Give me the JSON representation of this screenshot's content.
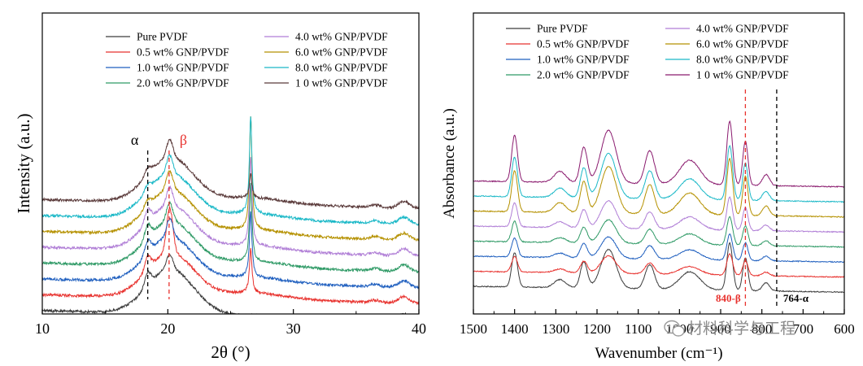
{
  "chart_data": [
    {
      "type": "line",
      "title": "",
      "xlabel": "2θ (°)",
      "ylabel": "Intensity (a.u.)",
      "xlim": [
        10,
        40
      ],
      "xticks": [
        "10",
        "20",
        "30",
        "40"
      ],
      "legend": "top",
      "grid": false,
      "annotations": [
        {
          "label": "α",
          "x": 18.4,
          "color": "#000000"
        },
        {
          "label": "β",
          "x": 20.1,
          "color": "#e8322e"
        }
      ],
      "series": [
        {
          "name": "Pure PVDF",
          "color": "#3c3c3c"
        },
        {
          "name": "0.5 wt% GNP/PVDF",
          "color": "#e8322e"
        },
        {
          "name": "1.0 wt% GNP/PVDF",
          "color": "#1f5fbf"
        },
        {
          "name": "2.0 wt% GNP/PVDF",
          "color": "#2f9a66"
        },
        {
          "name": "4.0 wt% GNP/PVDF",
          "color": "#b07ed6"
        },
        {
          "name": "6.0 wt% GNP/PVDF",
          "color": "#b59100"
        },
        {
          "name": "8.0 wt% GNP/PVDF",
          "color": "#1ab8c7"
        },
        {
          "name": "1 0 wt% GNP/PVDF",
          "color": "#5a3a3a"
        }
      ]
    },
    {
      "type": "line",
      "title": "",
      "xlabel": "Wavenumber (cm⁻¹)",
      "ylabel": "Absorbance (a.u.)",
      "xlim": [
        1500,
        600
      ],
      "xticks": [
        "1500",
        "1400",
        "1300",
        "1200",
        "1100",
        "1000",
        "900",
        "800",
        "700",
        "600"
      ],
      "legend": "top",
      "grid": false,
      "annotations": [
        {
          "label": "840-β",
          "x": 840,
          "color": "#e8322e"
        },
        {
          "label": "764-α",
          "x": 764,
          "color": "#000000"
        }
      ],
      "series": [
        {
          "name": "Pure PVDF",
          "color": "#3c3c3c"
        },
        {
          "name": "0.5 wt% GNP/PVDF",
          "color": "#e8322e"
        },
        {
          "name": "1.0 wt% GNP/PVDF",
          "color": "#1f5fbf"
        },
        {
          "name": "2.0 wt% GNP/PVDF",
          "color": "#2f9a66"
        },
        {
          "name": "4.0 wt% GNP/PVDF",
          "color": "#b07ed6"
        },
        {
          "name": "6.0 wt% GNP/PVDF",
          "color": "#b59100"
        },
        {
          "name": "8.0 wt% GNP/PVDF",
          "color": "#1ab8c7"
        },
        {
          "name": "1 0 wt% GNP/PVDF",
          "color": "#8a1a6e"
        }
      ]
    }
  ],
  "watermark": {
    "text": "材料科学与工程",
    "icon": "wechat-icon"
  }
}
